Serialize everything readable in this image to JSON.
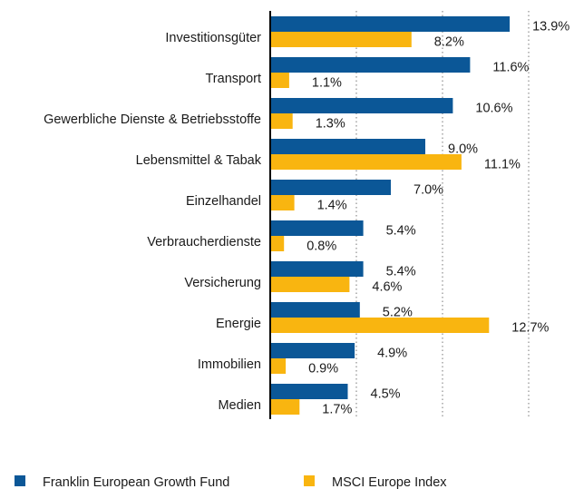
{
  "chart_data": {
    "type": "barh",
    "categories": [
      "Investitionsgüter",
      "Transport",
      "Gewerbliche Dienste & Betriebsstoffe",
      "Lebensmittel & Tabak",
      "Einzelhandel",
      "Verbraucherdienste",
      "Versicherung",
      "Energie",
      "Immobilien",
      "Medien"
    ],
    "series": [
      {
        "name": "Franklin European Growth Fund",
        "color": "#0b5797",
        "values": [
          13.9,
          11.6,
          10.6,
          9.0,
          7.0,
          5.4,
          5.4,
          5.2,
          4.9,
          4.5
        ],
        "value_labels": [
          "13.9%",
          "11.6%",
          "10.6%",
          "9.0%",
          "7.0%",
          "5.4%",
          "5.4%",
          "5.2%",
          "4.9%",
          "4.5%"
        ]
      },
      {
        "name": "MSCI Europe Index",
        "color": "#f9b510",
        "values": [
          8.2,
          1.1,
          1.3,
          11.1,
          1.4,
          0.8,
          4.6,
          12.7,
          0.9,
          1.7
        ],
        "value_labels": [
          "8.2%",
          "1.1%",
          "1.3%",
          "11.1%",
          "1.4%",
          "0.8%",
          "4.6%",
          "12.7%",
          "0.9%",
          "1.7%"
        ]
      }
    ],
    "xlim": [
      0,
      15
    ],
    "xticks": [
      0,
      5,
      10,
      15
    ],
    "grid": true,
    "legend": "bottom"
  }
}
